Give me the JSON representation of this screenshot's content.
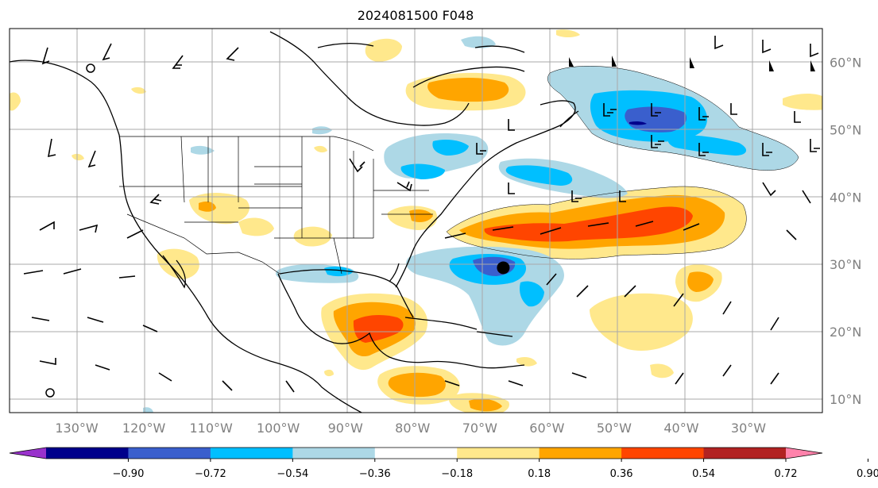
{
  "title": "2024081500 F048",
  "latitude_labels": [
    "60°N",
    "50°N",
    "40°N",
    "30°N",
    "20°N",
    "10°N"
  ],
  "longitude_labels": [
    "130°W",
    "120°W",
    "110°W",
    "100°W",
    "90°W",
    "80°W",
    "70°W",
    "60°W",
    "50°W",
    "40°W",
    "30°W"
  ],
  "colorbar": {
    "tick_labels": [
      "−0.90",
      "−0.72",
      "−0.54",
      "−0.36",
      "−0.18",
      "0.18",
      "0.36",
      "0.54",
      "0.72",
      "0.90"
    ],
    "colors": [
      "#9932cc",
      "#00008b",
      "#3a5fcd",
      "#00bfff",
      "#add8e6",
      "#ffffff",
      "#ffe88c",
      "#ffa500",
      "#ff4500",
      "#b22222",
      "#ff82ab"
    ]
  },
  "map": {
    "lon_range": [
      -140,
      -19
    ],
    "lat_range": [
      8,
      65
    ],
    "gridline_color": "#a9a9a9",
    "marker": {
      "lon": -66.5,
      "lat": 29.5,
      "color": "#000000"
    }
  }
}
